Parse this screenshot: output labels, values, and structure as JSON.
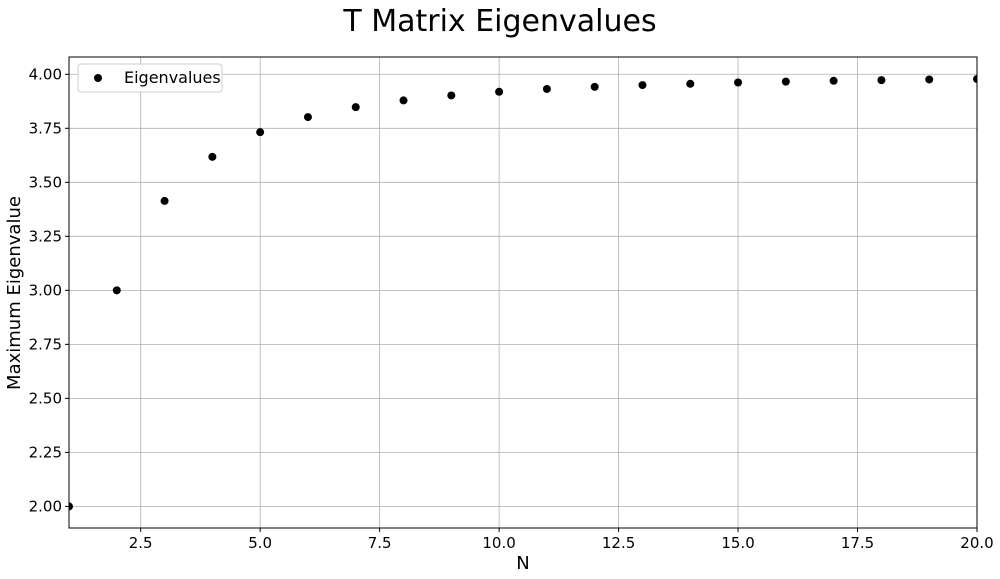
{
  "chart_data": {
    "type": "scatter",
    "title": "T Matrix Eigenvalues",
    "xlabel": "N",
    "ylabel": "Maximum Eigenvalue",
    "xlim": [
      1,
      20
    ],
    "ylim": [
      1.9,
      4.08
    ],
    "xticks": [
      2.5,
      5.0,
      7.5,
      10.0,
      12.5,
      15.0,
      17.5,
      20.0
    ],
    "xtick_labels": [
      "2.5",
      "5.0",
      "7.5",
      "10.0",
      "12.5",
      "15.0",
      "17.5",
      "20.0"
    ],
    "yticks": [
      2.0,
      2.25,
      2.5,
      2.75,
      3.0,
      3.25,
      3.5,
      3.75,
      4.0
    ],
    "ytick_labels": [
      "2.00",
      "2.25",
      "2.50",
      "2.75",
      "3.00",
      "3.25",
      "3.50",
      "3.75",
      "4.00"
    ],
    "grid": true,
    "legend_position": "top-left",
    "series": [
      {
        "name": "Eigenvalues",
        "color": "#000000",
        "x": [
          1,
          2,
          3,
          4,
          5,
          6,
          7,
          8,
          9,
          10,
          11,
          12,
          13,
          14,
          15,
          16,
          17,
          18,
          19,
          20
        ],
        "y": [
          2.0,
          3.0,
          3.414,
          3.618,
          3.732,
          3.802,
          3.848,
          3.879,
          3.902,
          3.919,
          3.932,
          3.942,
          3.95,
          3.956,
          3.962,
          3.966,
          3.97,
          3.973,
          3.976,
          3.978
        ]
      }
    ]
  }
}
